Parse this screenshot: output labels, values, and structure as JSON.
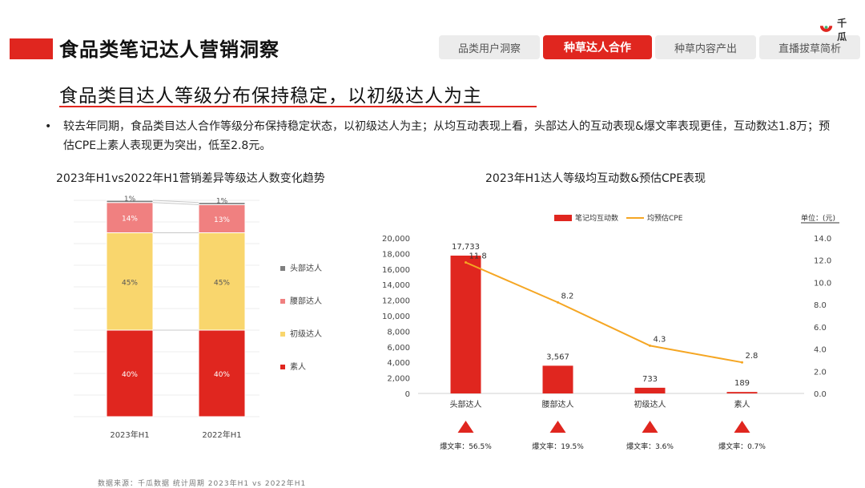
{
  "header": {
    "main_title": "食品类笔记达人营销洞察",
    "nav_tabs": [
      {
        "label": "品类用户洞察",
        "active": false
      },
      {
        "label": "种草达人合作",
        "active": true
      },
      {
        "label": "种草内容产出",
        "active": false
      },
      {
        "label": "直播拔草简析",
        "active": false
      }
    ],
    "logo_text": "千瓜"
  },
  "section": {
    "title": "食品类目达人等级分布保持稳定，以初级达人为主",
    "bullet": "较去年同期，食品类目达人合作等级分布保持稳定状态，以初级达人为主；从均互动表现上看，头部达人的互动表现&爆文率表现更佳，互动数达1.8万；预估CPE上素人表现更为突出，低至2.8元。"
  },
  "footer_text": "数据来源：千瓜数据 统计周期 2023年H1 vs 2022年H1",
  "colors": {
    "accent": "#e0261f",
    "head": "#7f7f7f",
    "waist": "#f08080",
    "junior": "#f9d66d",
    "amateur": "#e0261f",
    "line": "#f5a623"
  },
  "chart_data": [
    {
      "type": "bar",
      "stacked": true,
      "title": "2023年H1vs2022年H1营销差异等级达人数变化趋势",
      "categories": [
        "2023年H1",
        "2022年H1"
      ],
      "series": [
        {
          "name": "素人",
          "values": [
            40,
            40
          ],
          "labels": [
            "40%",
            "40%"
          ],
          "color_key": "amateur"
        },
        {
          "name": "初级达人",
          "values": [
            45,
            45
          ],
          "labels": [
            "45%",
            "45%"
          ],
          "color_key": "junior"
        },
        {
          "name": "腰部达人",
          "values": [
            14,
            13
          ],
          "labels": [
            "14%",
            "13%"
          ],
          "color_key": "waist"
        },
        {
          "name": "头部达人",
          "values": [
            1,
            1
          ],
          "labels": [
            "1%",
            "1%"
          ],
          "color_key": "head"
        }
      ],
      "legend_order": [
        "头部达人",
        "腰部达人",
        "初级达人",
        "素人"
      ],
      "legend": "right",
      "ylim": [
        0,
        100
      ]
    },
    {
      "type": "bar+line",
      "title": "2023年H1达人等级均互动数&预估CPE表现",
      "categories": [
        "头部达人",
        "腰部达人",
        "初级达人",
        "素人"
      ],
      "bar_series": {
        "name": "笔记均互动数",
        "values": [
          17733,
          3567,
          733,
          189
        ],
        "labels": [
          "17,733",
          "3,567",
          "733",
          "189"
        ]
      },
      "line_series": {
        "name": "均预估CPE",
        "values": [
          11.8,
          8.2,
          4.3,
          2.8
        ],
        "labels": [
          "11.8",
          "8.2",
          "4.3",
          "2.8"
        ]
      },
      "y_left": {
        "range": [
          0,
          20000
        ],
        "ticks": [
          "0",
          "2,000",
          "4,000",
          "6,000",
          "8,000",
          "10,000",
          "12,000",
          "14,000",
          "16,000",
          "18,000",
          "20,000"
        ]
      },
      "y_right": {
        "range": [
          0,
          14
        ],
        "ticks": [
          "0.0",
          "2.0",
          "4.0",
          "6.0",
          "8.0",
          "10.0",
          "12.0",
          "14.0"
        ]
      },
      "unit_label": "单位：(元)",
      "viral_rates": [
        "爆文率：56.5%",
        "爆文率：19.5%",
        "爆文率：3.6%",
        "爆文率：0.7%"
      ],
      "legend": "top"
    }
  ]
}
